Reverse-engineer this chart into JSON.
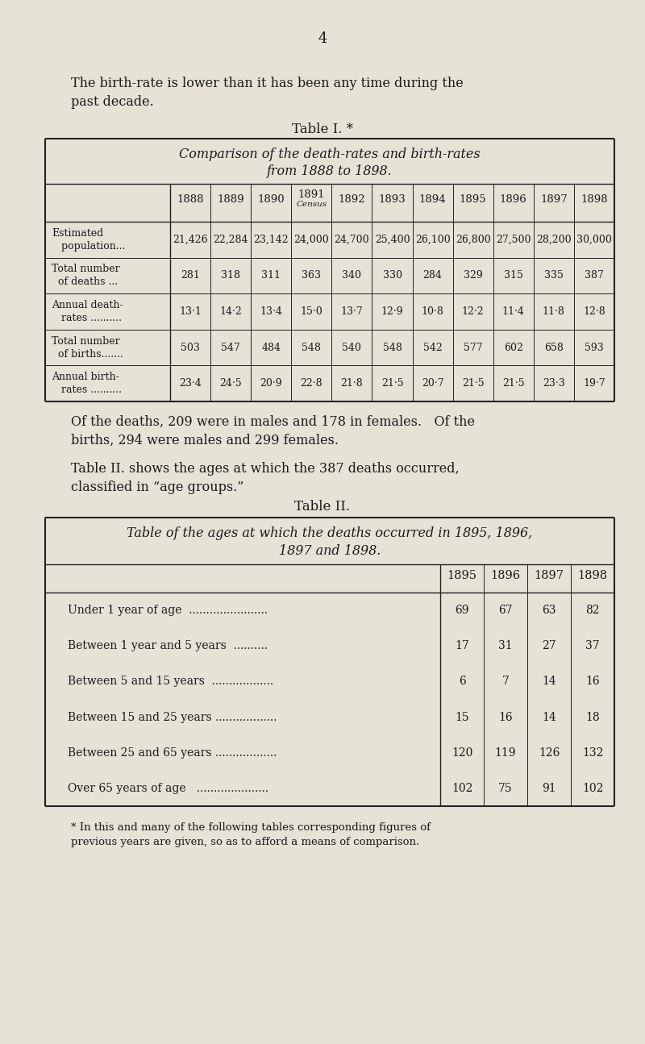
{
  "page_num": "4",
  "bg_color": "#e6e2d6",
  "text_color": "#1a1a1a",
  "intro_text_line1": "The birth-rate is lower than it has been any time during the",
  "intro_text_line2": "past decade.",
  "table1_label": "Table I. *",
  "table1_title_line1": "Comparison of the death-rates and birth-rates",
  "table1_title_line2": "from 1888 to 1898.",
  "table1_years": [
    "1888",
    "1889",
    "1890",
    "1891",
    "1892",
    "1893",
    "1894",
    "1895",
    "1896",
    "1897",
    "1898"
  ],
  "table1_census_label": "Census",
  "table1_row_labels_line1": [
    "Estimated",
    "Total number",
    "Annual death-",
    "Total number",
    "Annual birth-"
  ],
  "table1_row_labels_line2": [
    "   population...",
    "  of deaths ...",
    "   rates ..........",
    "  of births.......",
    "   rates .........."
  ],
  "table1_data": [
    [
      "21,426",
      "22,284",
      "23,142",
      "24,000",
      "24,700",
      "25,400",
      "26,100",
      "26,800",
      "27,500",
      "28,200",
      "30,000"
    ],
    [
      "281",
      "318",
      "311",
      "363",
      "340",
      "330",
      "284",
      "329",
      "315",
      "335",
      "387"
    ],
    [
      "13·1",
      "14·2",
      "13·4",
      "15·0",
      "13·7",
      "12·9",
      "10·8",
      "12·2",
      "11·4",
      "11·8",
      "12·8"
    ],
    [
      "503",
      "547",
      "484",
      "548",
      "540",
      "548",
      "542",
      "577",
      "602",
      "658",
      "593"
    ],
    [
      "23·4",
      "24·5",
      "20·9",
      "22·8",
      "21·8",
      "21·5",
      "20·7",
      "21·5",
      "21·5",
      "23·3",
      "19·7"
    ]
  ],
  "between_text_line1": "Of the deaths, 209 were in males and 178 in females.   Of the",
  "between_text_line2": "births, 294 were males and 299 females.",
  "between_text_line3": "Table II. shows the ages at which the 387 deaths occurred,",
  "between_text_line4": "classified in “age groups.”",
  "table2_label": "Table II.",
  "table2_title_line1": "Table of the ages at which the deaths occurred in 1895, 1896,",
  "table2_title_line2": "1897 and 1898.",
  "table2_years": [
    "1895",
    "1896",
    "1897",
    "1898"
  ],
  "table2_row_labels": [
    "Under 1 year of age  .......................",
    "Between 1 year and 5 years  ..........",
    "Between 5 and 15 years  ..................",
    "Between 15 and 25 years ..................",
    "Between 25 and 65 years ..................",
    "Over 65 years of age   ....................."
  ],
  "table2_data": [
    [
      69,
      67,
      63,
      82
    ],
    [
      17,
      31,
      27,
      37
    ],
    [
      6,
      7,
      14,
      16
    ],
    [
      15,
      16,
      14,
      18
    ],
    [
      120,
      119,
      126,
      132
    ],
    [
      102,
      75,
      91,
      102
    ]
  ],
  "footnote_line1": "* In this and many of the following tables corresponding figures of",
  "footnote_line2": "previous years are given, so as to afford a means of comparison."
}
